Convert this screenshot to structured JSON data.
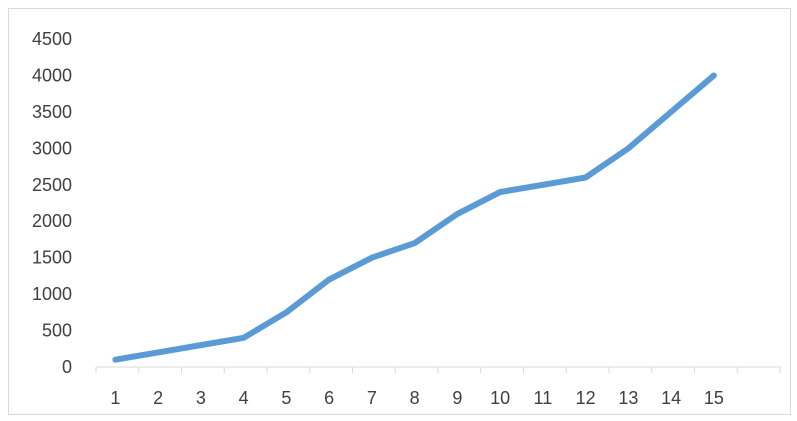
{
  "chart_data": {
    "type": "line",
    "title": "",
    "xlabel": "",
    "ylabel": "",
    "categories": [
      "1",
      "2",
      "3",
      "4",
      "5",
      "6",
      "7",
      "8",
      "9",
      "10",
      "11",
      "12",
      "13",
      "14",
      "15"
    ],
    "series": [
      {
        "values": [
          100,
          200,
          300,
          400,
          750,
          1200,
          1500,
          1700,
          2100,
          2400,
          2500,
          2600,
          3000,
          3500,
          4000
        ],
        "color": "#5b9bd5"
      }
    ],
    "ylim": [
      0,
      4500
    ],
    "yticks": [
      0,
      500,
      1000,
      1500,
      2000,
      2500,
      3000,
      3500,
      4000,
      4500
    ],
    "grid": false,
    "legend": "none",
    "axis_color": "#d9d9d9",
    "text_color": "#404040"
  }
}
